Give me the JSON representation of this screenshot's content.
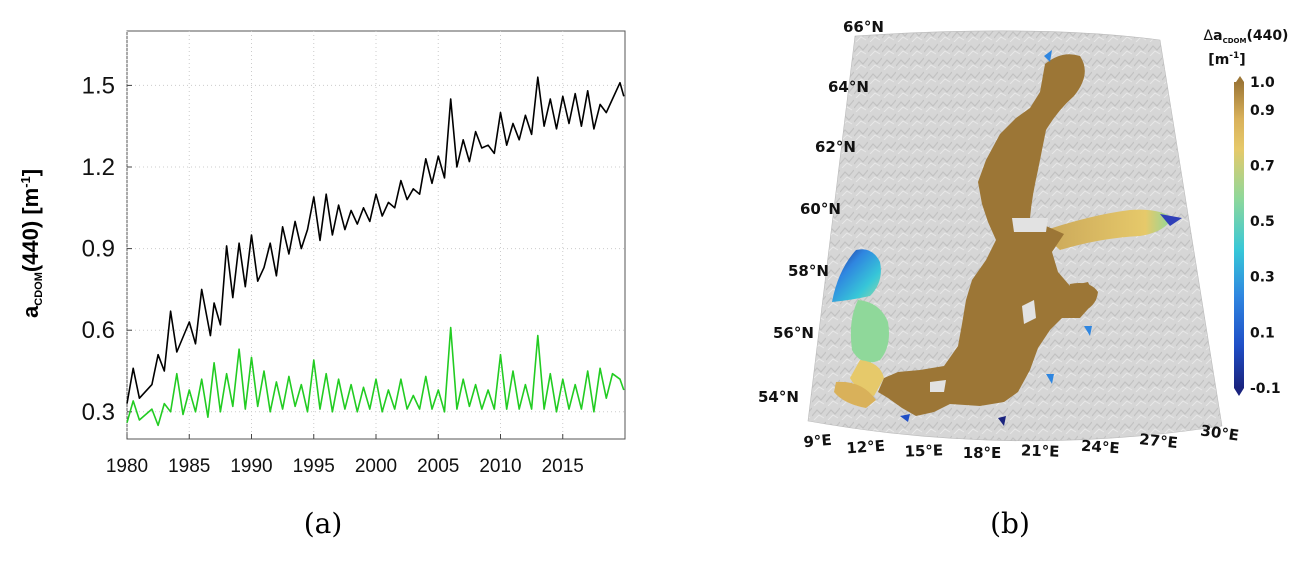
{
  "chart_data": [
    {
      "type": "line",
      "panel_label": "(a)",
      "ylabel_main": "a",
      "ylabel_sub": "CDOM",
      "ylabel_rest": "(440) [m",
      "ylabel_sup": "-1",
      "ylabel_close": "]",
      "xlim": [
        1980,
        2020
      ],
      "ylim": [
        0.2,
        1.7
      ],
      "xticks": [
        "1980",
        "1985",
        "1990",
        "1995",
        "2000",
        "2005",
        "2010",
        "2015"
      ],
      "yticks": [
        "0.3",
        "0.6",
        "0.9",
        "1.2",
        "1.5"
      ],
      "grid": true,
      "series": [
        {
          "color": "#000000",
          "x": [
            1980,
            1980.5,
            1981,
            1982,
            1982.5,
            1983,
            1983.5,
            1984,
            1985,
            1985.5,
            1986,
            1986.7,
            1987,
            1987.5,
            1988,
            1988.5,
            1989,
            1989.5,
            1990,
            1990.5,
            1991,
            1991.5,
            1992,
            1992.5,
            1993,
            1993.5,
            1994,
            1994.5,
            1995,
            1995.5,
            1996,
            1996.5,
            1997,
            1997.5,
            1998,
            1998.5,
            1999,
            1999.5,
            2000,
            2000.5,
            2001,
            2001.5,
            2002,
            2002.5,
            2003,
            2003.5,
            2004,
            2004.5,
            2005,
            2005.5,
            2006,
            2006.5,
            2007,
            2007.5,
            2008,
            2008.5,
            2009,
            2009.5,
            2010,
            2010.5,
            2011,
            2011.5,
            2012,
            2012.5,
            2013,
            2013.5,
            2014,
            2014.5,
            2015,
            2015.5,
            2016,
            2016.5,
            2017,
            2017.5,
            2018,
            2018.5,
            2019,
            2019.6,
            2019.9
          ],
          "values": [
            0.33,
            0.46,
            0.35,
            0.4,
            0.51,
            0.45,
            0.67,
            0.52,
            0.63,
            0.55,
            0.75,
            0.58,
            0.7,
            0.62,
            0.91,
            0.72,
            0.92,
            0.76,
            0.95,
            0.78,
            0.83,
            0.92,
            0.8,
            0.98,
            0.88,
            1.0,
            0.9,
            0.97,
            1.09,
            0.93,
            1.1,
            0.95,
            1.06,
            0.97,
            1.04,
            0.99,
            1.05,
            1.0,
            1.1,
            1.02,
            1.07,
            1.05,
            1.15,
            1.08,
            1.12,
            1.1,
            1.23,
            1.14,
            1.24,
            1.16,
            1.45,
            1.2,
            1.3,
            1.22,
            1.33,
            1.27,
            1.28,
            1.25,
            1.4,
            1.28,
            1.36,
            1.3,
            1.39,
            1.32,
            1.53,
            1.35,
            1.45,
            1.34,
            1.46,
            1.36,
            1.47,
            1.35,
            1.48,
            1.34,
            1.43,
            1.4,
            1.45,
            1.51,
            1.46
          ]
        },
        {
          "color": "#22cc22",
          "x": [
            1980,
            1980.5,
            1981,
            1981.5,
            1982,
            1982.5,
            1983,
            1983.5,
            1984,
            1984.5,
            1985,
            1985.5,
            1986,
            1986.5,
            1987,
            1987.5,
            1988,
            1988.5,
            1989,
            1989.5,
            1990,
            1990.5,
            1991,
            1991.5,
            1992,
            1992.5,
            1993,
            1993.5,
            1994,
            1994.5,
            1995,
            1995.5,
            1996,
            1996.5,
            1997,
            1997.5,
            1998,
            1998.5,
            1999,
            1999.5,
            2000,
            2000.5,
            2001,
            2001.5,
            2002,
            2002.5,
            2003,
            2003.5,
            2004,
            2004.5,
            2005,
            2005.5,
            2006,
            2006.5,
            2007,
            2007.5,
            2008,
            2008.5,
            2009,
            2009.5,
            2010,
            2010.5,
            2011,
            2011.5,
            2012,
            2012.5,
            2013,
            2013.5,
            2014,
            2014.5,
            2015,
            2015.5,
            2016,
            2016.5,
            2017,
            2017.5,
            2018,
            2018.5,
            2019,
            2019.6,
            2019.9
          ],
          "values": [
            0.26,
            0.34,
            0.27,
            0.29,
            0.31,
            0.25,
            0.33,
            0.3,
            0.44,
            0.29,
            0.38,
            0.3,
            0.42,
            0.28,
            0.48,
            0.3,
            0.44,
            0.32,
            0.53,
            0.31,
            0.5,
            0.32,
            0.45,
            0.3,
            0.41,
            0.31,
            0.43,
            0.32,
            0.4,
            0.3,
            0.49,
            0.31,
            0.44,
            0.3,
            0.42,
            0.31,
            0.4,
            0.3,
            0.39,
            0.31,
            0.42,
            0.3,
            0.38,
            0.31,
            0.42,
            0.31,
            0.36,
            0.31,
            0.43,
            0.31,
            0.38,
            0.3,
            0.61,
            0.31,
            0.42,
            0.32,
            0.4,
            0.31,
            0.38,
            0.31,
            0.51,
            0.31,
            0.45,
            0.31,
            0.4,
            0.31,
            0.58,
            0.31,
            0.44,
            0.3,
            0.42,
            0.31,
            0.4,
            0.31,
            0.45,
            0.3,
            0.46,
            0.35,
            0.44,
            0.42,
            0.38
          ]
        }
      ]
    },
    {
      "type": "heatmap",
      "panel_label": "(b)",
      "colorbar_title_main": "a",
      "colorbar_title_sub": "CDOM",
      "colorbar_title_rest": "(440)",
      "colorbar_title_prefix": "Δ",
      "colorbar_unit": "[m",
      "colorbar_unit_sup": "-1",
      "colorbar_unit_close": "]",
      "colorbar_ticks": [
        "1.0",
        "0.9",
        "0.7",
        "0.5",
        "0.3",
        "0.1",
        "-0.1"
      ],
      "colorbar_range": [
        -0.1,
        1.0
      ],
      "colorbar_colors": [
        "#1a237e",
        "#1f4fc7",
        "#2f86e0",
        "#37c7d8",
        "#8fd89a",
        "#e6c96a",
        "#d9b15a",
        "#9c7636"
      ],
      "lat_labels": [
        "66°N",
        "64°N",
        "62°N",
        "60°N",
        "58°N",
        "56°N",
        "54°N"
      ],
      "lon_labels": [
        "9°E",
        "12°E",
        "15°E",
        "18°E",
        "21°E",
        "24°E",
        "27°E",
        "30°E"
      ],
      "sea_main_color": "#9c7636",
      "land_color": "#d4d4d4"
    }
  ]
}
